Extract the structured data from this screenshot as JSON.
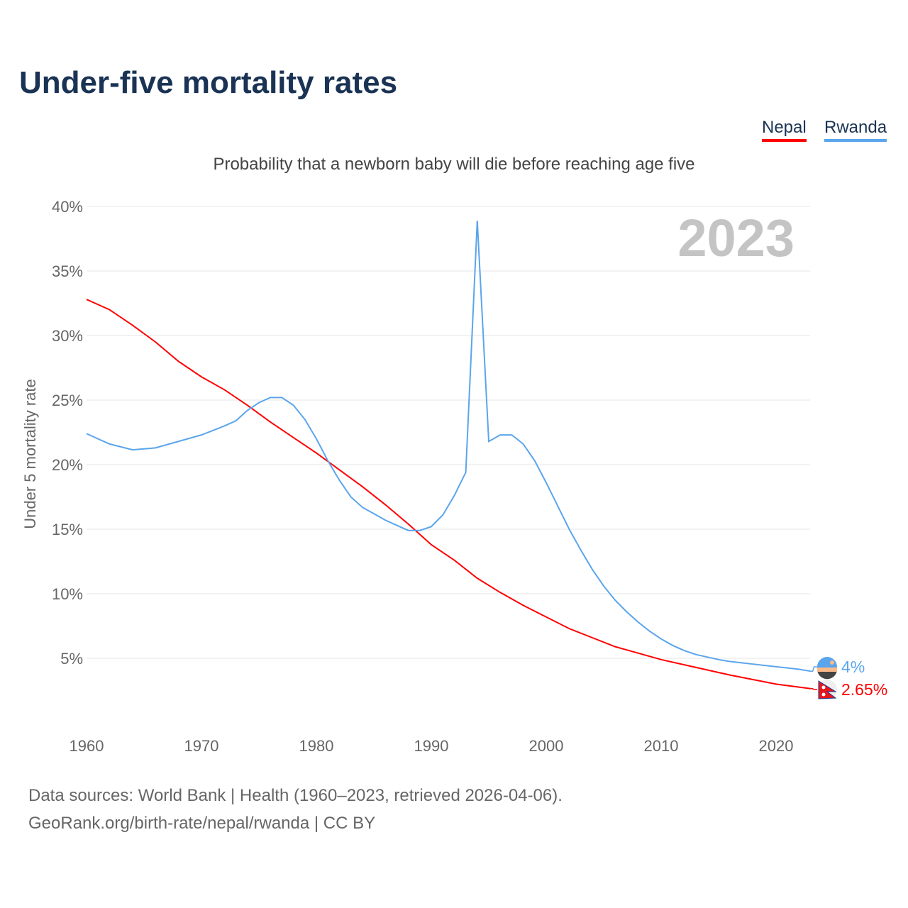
{
  "chart_data": {
    "type": "line",
    "title": "Under-five mortality rates",
    "subtitle": "Probability that a newborn baby will die before reaching age five",
    "ylabel": "Under 5 mortality rate",
    "xlabel": "",
    "year_label": "2023",
    "xlim": [
      1960,
      2023
    ],
    "ylim": [
      0,
      40
    ],
    "xticks": [
      "1960",
      "1970",
      "1980",
      "1990",
      "2000",
      "2010",
      "2020"
    ],
    "yticks": [
      "5%",
      "10%",
      "15%",
      "20%",
      "25%",
      "30%",
      "35%",
      "40%"
    ],
    "grid": true,
    "legend": "top-right",
    "series": [
      {
        "name": "Nepal",
        "color": "#ff0000",
        "end_label": "2.65%",
        "x": [
          1960,
          1962,
          1964,
          1966,
          1968,
          1970,
          1972,
          1974,
          1976,
          1978,
          1980,
          1982,
          1984,
          1986,
          1988,
          1990,
          1992,
          1994,
          1996,
          1998,
          2000,
          2002,
          2004,
          2006,
          2008,
          2010,
          2012,
          2014,
          2016,
          2018,
          2020,
          2023
        ],
        "values": [
          32.8,
          32.0,
          30.8,
          29.5,
          28.0,
          26.8,
          25.8,
          24.6,
          23.3,
          22.1,
          20.9,
          19.6,
          18.3,
          16.9,
          15.4,
          13.8,
          12.6,
          11.2,
          10.1,
          9.1,
          8.2,
          7.3,
          6.6,
          5.9,
          5.4,
          4.9,
          4.5,
          4.1,
          3.7,
          3.35,
          3.0,
          2.65
        ]
      },
      {
        "name": "Rwanda",
        "color": "#5aa5ec",
        "end_label": "4%",
        "x": [
          1960,
          1962,
          1964,
          1966,
          1968,
          1970,
          1972,
          1973,
          1974,
          1975,
          1976,
          1977,
          1978,
          1979,
          1980,
          1981,
          1982,
          1983,
          1984,
          1985,
          1986,
          1987,
          1988,
          1989,
          1990,
          1991,
          1992,
          1993,
          1994,
          1995,
          1996,
          1997,
          1998,
          1999,
          2000,
          2001,
          2002,
          2003,
          2004,
          2005,
          2006,
          2007,
          2008,
          2009,
          2010,
          2011,
          2012,
          2013,
          2014,
          2015,
          2016,
          2017,
          2018,
          2019,
          2020,
          2021,
          2022,
          2023
        ],
        "values": [
          22.4,
          21.6,
          21.15,
          21.3,
          21.8,
          22.3,
          23.0,
          23.4,
          24.2,
          24.8,
          25.2,
          25.2,
          24.6,
          23.5,
          22.0,
          20.3,
          18.8,
          17.5,
          16.7,
          16.2,
          15.7,
          15.3,
          14.9,
          14.9,
          15.2,
          16.1,
          17.6,
          19.4,
          38.9,
          21.8,
          22.3,
          22.3,
          21.6,
          20.3,
          18.6,
          16.8,
          15.0,
          13.4,
          11.9,
          10.6,
          9.5,
          8.6,
          7.8,
          7.1,
          6.5,
          6.0,
          5.6,
          5.3,
          5.1,
          4.9,
          4.75,
          4.65,
          4.55,
          4.45,
          4.35,
          4.25,
          4.15,
          4.0
        ]
      }
    ]
  },
  "sources": {
    "line1": "Data sources: World Bank | Health (1960–2023, retrieved 2026-04-06).",
    "line2": "GeoRank.org/birth-rate/nepal/rwanda | CC BY"
  }
}
